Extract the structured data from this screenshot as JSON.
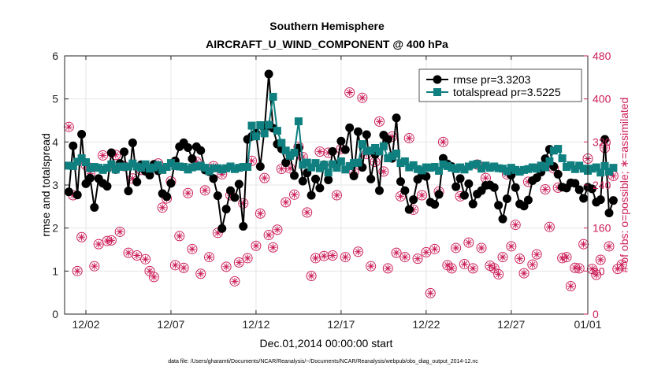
{
  "chart_data": {
    "type": "line",
    "title": "Southern Hemisphere",
    "subtitle": "AIRCRAFT_U_WIND_COMPONENT @ 400 hPa",
    "xlabel": "Dec.01,2014 00:00:00 start",
    "ylabel": "rmse and totalspread",
    "ylabel_right": "# of obs: o=possible; ∗=assimilated",
    "footer": "data file: /Users/gharamti/Documents/NCAR/Reanalysis/~/Documents/NCAR/Reanalysis/webpub/obs_diag_output_2014-12.nc",
    "xlim": [
      0.5,
      31.25
    ],
    "ylim": [
      0,
      6
    ],
    "ylim_right": [
      0,
      480
    ],
    "x_ticks": [
      1.75,
      6.75,
      11.75,
      16.75,
      21.75,
      26.75,
      31.75
    ],
    "x_tick_labels": [
      "12/02",
      "12/07",
      "12/12",
      "12/17",
      "12/22",
      "12/27",
      "01/01"
    ],
    "y_ticks": [
      0,
      1,
      2,
      3,
      4,
      5,
      6
    ],
    "y_tick_labels": [
      "0",
      "1",
      "2",
      "3",
      "4",
      "5",
      "6"
    ],
    "y_ticks_right": [
      0,
      80,
      160,
      240,
      320,
      400,
      480
    ],
    "y_tick_labels_right": [
      "0",
      "80",
      "160",
      "240",
      "320",
      "400",
      "480"
    ],
    "colors": {
      "rmse": "#000000",
      "spread": "#0f7f7f",
      "obs": "#cc1f5a",
      "axis": "#262626"
    },
    "legend": {
      "position": "top-right",
      "entries": [
        "rmse pr=3.3203",
        "totalspread pr=3.5225"
      ]
    },
    "series": [
      {
        "name": "rmse",
        "start": 0.75,
        "step": 0.25,
        "values": [
          2.84,
          3.91,
          2.77,
          4.18,
          3.03,
          3.16,
          2.48,
          3.15,
          3.04,
          2.97,
          3.75,
          3.36,
          3.5,
          3.77,
          2.86,
          3.98,
          3.07,
          3.47,
          3.32,
          3.23,
          3.48,
          3.33,
          2.8,
          2.73,
          3.04,
          3.56,
          3.89,
          3.98,
          3.87,
          3.61,
          3.89,
          3.8,
          3.35,
          3.31,
          3.15,
          2.75,
          1.99,
          2.44,
          2.87,
          2.71,
          3.02,
          2.04,
          4.06,
          4.13,
          4.2,
          3.43,
          4.3,
          5.58,
          4.32,
          3.95,
          3.84,
          3.52,
          3.68,
          3.22,
          3.86,
          3.09,
          3.28,
          2.76,
          3.14,
          2.93,
          3.47,
          3.12,
          3.78,
          3.47,
          4.02,
          3.82,
          4.33,
          3.21,
          4.24,
          3.41,
          4.17,
          3.14,
          3.71,
          2.87,
          4.16,
          4.06,
          3.62,
          4.56,
          3.08,
          2.87,
          2.43,
          2.66,
          3.13,
          3.23,
          3.2,
          2.6,
          2.55,
          2.78,
          3.62,
          3.49,
          3.43,
          2.96,
          3.15,
          2.76,
          3.03,
          2.56,
          2.79,
          2.87,
          2.99,
          3.0,
          2.94,
          2.53,
          2.21,
          2.68,
          3.23,
          2.94,
          2.56,
          2.51,
          2.65,
          3.1,
          3.17,
          3.3,
          3.61,
          3.83,
          3.43,
          3.25,
          2.95,
          2.93,
          3.05,
          3.04,
          2.89,
          2.69,
          2.95,
          2.91,
          2.6,
          2.66,
          4.06,
          2.35,
          2.64
        ]
      },
      {
        "name": "totalspread",
        "start": 0.75,
        "step": 0.25,
        "values": [
          3.45,
          3.44,
          3.54,
          3.62,
          3.53,
          3.39,
          3.42,
          3.4,
          3.35,
          3.4,
          3.48,
          3.36,
          3.43,
          3.42,
          3.43,
          3.5,
          3.43,
          3.4,
          3.48,
          3.38,
          3.41,
          3.46,
          3.35,
          3.42,
          3.51,
          3.44,
          3.43,
          3.42,
          3.36,
          3.41,
          3.43,
          3.45,
          3.4,
          3.32,
          3.39,
          3.39,
          3.36,
          3.39,
          3.43,
          3.37,
          3.4,
          3.42,
          3.42,
          4.38,
          4.13,
          4.39,
          4.2,
          4.4,
          5.05,
          4.26,
          3.98,
          3.8,
          3.68,
          3.75,
          4.48,
          3.47,
          3.52,
          3.41,
          3.51,
          3.39,
          3.47,
          3.29,
          3.48,
          3.4,
          3.55,
          3.36,
          3.44,
          3.51,
          3.52,
          3.95,
          3.79,
          3.8,
          3.86,
          3.78,
          3.9,
          3.62,
          3.67,
          3.73,
          3.51,
          3.55,
          3.41,
          3.46,
          3.37,
          3.34,
          3.41,
          3.4,
          3.42,
          3.33,
          3.48,
          3.44,
          3.4,
          3.37,
          3.41,
          3.36,
          3.43,
          3.47,
          3.49,
          3.38,
          3.45,
          3.4,
          3.43,
          3.39,
          3.38,
          3.32,
          3.4,
          3.35,
          3.31,
          3.35,
          3.37,
          3.41,
          3.38,
          3.45,
          3.41,
          3.55,
          3.8,
          3.84,
          3.62,
          3.42,
          3.46,
          3.37,
          3.45,
          3.38,
          3.33,
          3.38,
          3.41,
          3.29,
          3.44,
          3.31,
          3.4
        ]
      },
      {
        "name": "obs_possible",
        "start": 0.75,
        "step": 0.25,
        "values": [
          348,
          221,
          80,
          143,
          277,
          261,
          89,
          130,
          295,
          136,
          137,
          296,
          153,
          275,
          114,
          252,
          109,
          268,
          102,
          80,
          69,
          280,
          198,
          215,
          247,
          91,
          145,
          86,
          225,
          121,
          283,
          75,
          230,
          106,
          275,
          151,
          260,
          88,
          221,
          61,
          96,
          206,
          104,
          285,
          127,
          187,
          253,
          147,
          124,
          157,
          270,
          208,
          271,
          222,
          311,
          292,
          189,
          71,
          104,
          302,
          108,
          300,
          109,
          221,
          307,
          106,
          412,
          264,
          116,
          402,
          298,
          89,
          283,
          358,
          265,
          85,
          330,
          114,
          219,
          106,
          327,
          194,
          103,
          221,
          115,
          39,
          121,
          228,
          320,
          91,
          85,
          123,
          219,
          93,
          133,
          85,
          278,
          123,
          253,
          90,
          85,
          74,
          106,
          260,
          126,
          166,
          103,
          76,
          246,
          92,
          111,
          274,
          232,
          162,
          271,
          235,
          104,
          106,
          52,
          86,
          85,
          130,
          289,
          84,
          73,
          101,
          309,
          126,
          257,
          84,
          92
        ]
      },
      {
        "name": "obs_assimilated",
        "start": 0.75,
        "step": 0.25,
        "values": [
          348,
          221,
          80,
          143,
          277,
          261,
          89,
          130,
          295,
          136,
          137,
          296,
          153,
          275,
          114,
          252,
          109,
          268,
          102,
          80,
          69,
          280,
          198,
          215,
          247,
          91,
          145,
          86,
          225,
          121,
          283,
          75,
          230,
          106,
          275,
          151,
          260,
          88,
          221,
          61,
          96,
          206,
          104,
          285,
          127,
          187,
          253,
          147,
          124,
          157,
          270,
          208,
          271,
          222,
          311,
          292,
          189,
          71,
          104,
          302,
          108,
          300,
          109,
          221,
          307,
          106,
          412,
          264,
          116,
          402,
          298,
          89,
          283,
          358,
          265,
          85,
          330,
          114,
          219,
          106,
          327,
          194,
          103,
          221,
          115,
          39,
          121,
          228,
          320,
          91,
          85,
          123,
          219,
          93,
          133,
          85,
          278,
          123,
          253,
          90,
          85,
          74,
          106,
          260,
          126,
          166,
          103,
          76,
          246,
          92,
          111,
          274,
          232,
          162,
          271,
          235,
          104,
          106,
          52,
          86,
          85,
          130,
          289,
          84,
          73,
          101,
          309,
          126,
          257,
          84,
          92
        ]
      }
    ]
  }
}
